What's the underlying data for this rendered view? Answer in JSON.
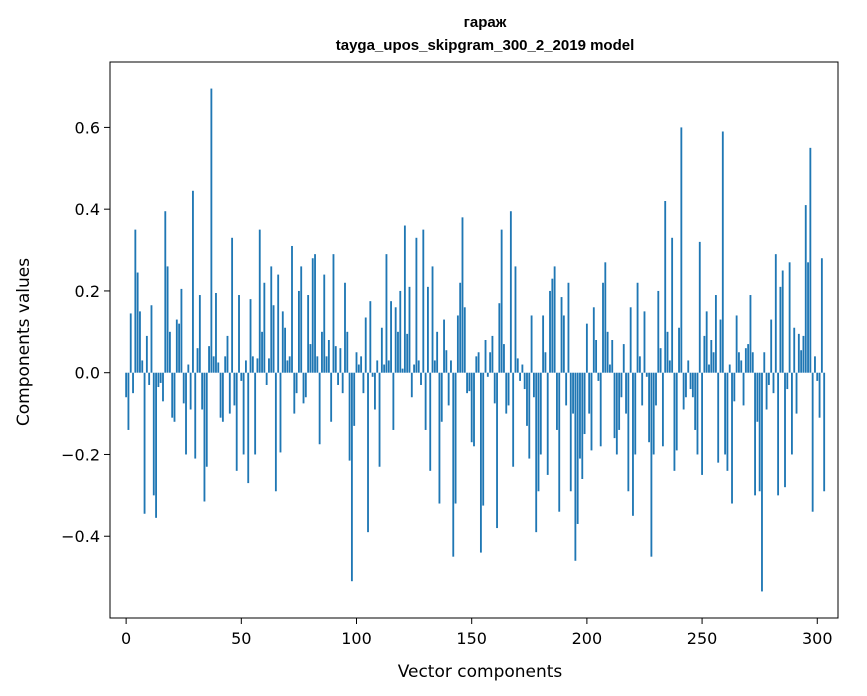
{
  "chart_data": {
    "type": "bar",
    "title": "гараж",
    "subtitle": "tayga_upos_skipgram_300_2_2019 model",
    "xlabel": "Vector components",
    "ylabel": "Components values",
    "xlim": [
      -7,
      309
    ],
    "ylim": [
      -0.6,
      0.76
    ],
    "x_ticks": [
      0,
      50,
      100,
      150,
      200,
      250,
      300
    ],
    "x_tick_labels": [
      "0",
      "50",
      "100",
      "150",
      "200",
      "250",
      "300"
    ],
    "y_ticks": [
      -0.4,
      -0.2,
      0.0,
      0.2,
      0.4,
      0.6
    ],
    "y_tick_labels": [
      "−0.4",
      "−0.2",
      "0.0",
      "0.2",
      "0.4",
      "0.6"
    ],
    "grid": false,
    "bar_color": "#1f77b4",
    "values": [
      -0.06,
      -0.14,
      0.145,
      -0.05,
      0.35,
      0.245,
      0.15,
      0.03,
      -0.345,
      0.09,
      -0.03,
      0.165,
      -0.3,
      -0.355,
      -0.035,
      -0.025,
      -0.07,
      0.395,
      0.26,
      0.1,
      -0.11,
      -0.12,
      0.13,
      0.12,
      0.205,
      -0.075,
      -0.2,
      0.02,
      -0.09,
      0.445,
      -0.21,
      0.06,
      0.19,
      -0.09,
      -0.315,
      -0.23,
      0.065,
      0.695,
      0.04,
      0.195,
      0.025,
      -0.11,
      -0.12,
      0.04,
      0.09,
      -0.1,
      0.33,
      -0.08,
      -0.24,
      0.19,
      -0.02,
      -0.2,
      0.03,
      -0.27,
      0.18,
      0.04,
      -0.2,
      0.035,
      0.35,
      0.1,
      0.22,
      -0.03,
      0.035,
      0.26,
      0.165,
      -0.29,
      0.24,
      -0.195,
      0.15,
      0.11,
      0.03,
      0.04,
      0.31,
      -0.1,
      -0.05,
      0.2,
      0.26,
      -0.075,
      -0.06,
      0.19,
      0.07,
      0.28,
      0.29,
      0.04,
      -0.175,
      0.1,
      0.24,
      0.04,
      0.08,
      -0.12,
      0.29,
      0.065,
      -0.03,
      0.06,
      -0.05,
      0.22,
      0.1,
      -0.215,
      -0.51,
      -0.13,
      0.05,
      0.02,
      0.04,
      -0.05,
      0.135,
      -0.39,
      0.175,
      -0.01,
      -0.09,
      0.03,
      -0.23,
      0.11,
      0.02,
      0.29,
      0.03,
      0.175,
      -0.14,
      0.16,
      0.1,
      0.2,
      0.01,
      0.36,
      0.095,
      0.21,
      -0.06,
      0.02,
      0.33,
      0.03,
      -0.03,
      0.35,
      -0.14,
      0.21,
      -0.24,
      0.26,
      0.03,
      0.1,
      -0.32,
      -0.12,
      0.13,
      0.055,
      -0.08,
      0.03,
      -0.45,
      -0.32,
      0.14,
      0.22,
      0.38,
      0.16,
      -0.05,
      -0.045,
      -0.17,
      -0.18,
      0.04,
      0.05,
      -0.44,
      -0.325,
      0.08,
      -0.01,
      0.05,
      0.09,
      -0.075,
      -0.38,
      0.17,
      0.35,
      0.07,
      -0.1,
      -0.08,
      0.395,
      -0.23,
      0.26,
      0.035,
      -0.02,
      0.02,
      -0.04,
      -0.13,
      -0.21,
      0.14,
      -0.06,
      -0.39,
      -0.29,
      -0.2,
      0.14,
      0.05,
      -0.25,
      0.2,
      0.23,
      0.26,
      -0.14,
      -0.34,
      0.185,
      0.14,
      -0.08,
      0.22,
      -0.29,
      -0.1,
      -0.46,
      -0.37,
      -0.21,
      -0.26,
      -0.15,
      0.12,
      -0.1,
      -0.19,
      0.16,
      0.08,
      -0.02,
      -0.18,
      0.22,
      0.27,
      0.1,
      0.02,
      0.08,
      -0.16,
      -0.2,
      -0.14,
      -0.06,
      0.07,
      -0.1,
      -0.29,
      0.16,
      -0.35,
      -0.2,
      0.22,
      0.04,
      -0.08,
      0.15,
      -0.01,
      -0.17,
      -0.45,
      -0.2,
      -0.08,
      0.2,
      0.06,
      -0.18,
      0.42,
      0.1,
      0.03,
      0.33,
      -0.24,
      -0.19,
      0.11,
      0.6,
      -0.09,
      -0.06,
      0.03,
      -0.04,
      -0.06,
      -0.14,
      -0.2,
      0.32,
      -0.25,
      0.09,
      0.15,
      0.02,
      0.08,
      0.05,
      0.19,
      -0.22,
      0.13,
      0.59,
      -0.2,
      -0.24,
      0.02,
      -0.32,
      -0.07,
      0.14,
      0.05,
      0.03,
      -0.08,
      0.06,
      0.07,
      0.19,
      0.05,
      -0.3,
      -0.12,
      -0.29,
      -0.535,
      0.05,
      -0.09,
      -0.03,
      0.13,
      -0.05,
      0.29,
      -0.3,
      0.21,
      0.25,
      -0.28,
      -0.04,
      0.27,
      -0.2,
      0.11,
      -0.1,
      0.095,
      0.055,
      0.09,
      0.41,
      0.27,
      0.55,
      -0.34,
      0.04,
      -0.02,
      -0.11,
      0.28,
      -0.29
    ]
  }
}
